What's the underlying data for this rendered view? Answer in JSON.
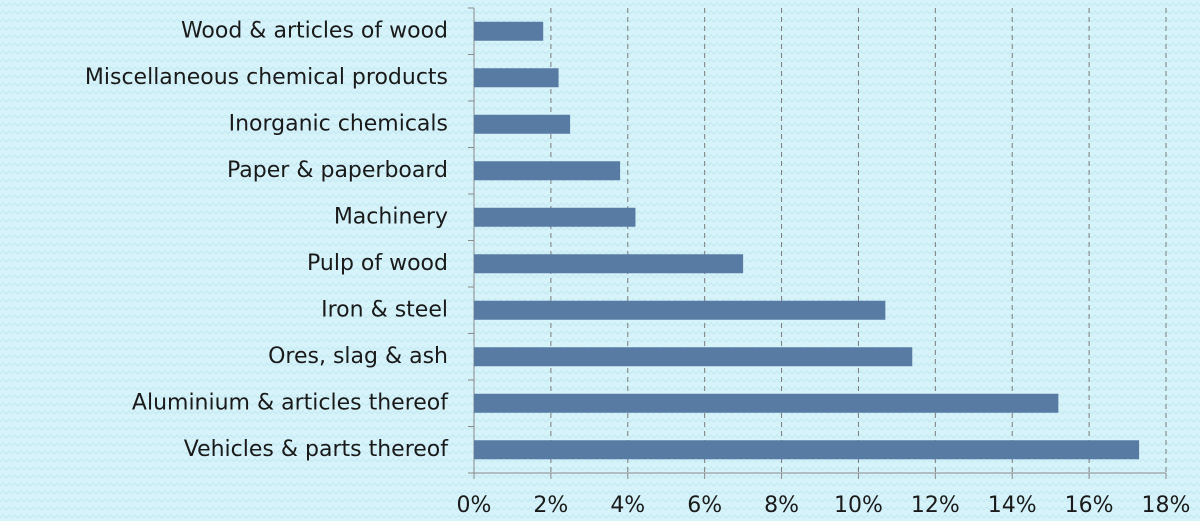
{
  "chart_data": {
    "type": "barh",
    "categories": [
      "Wood & articles of wood",
      "Miscellaneous chemical products",
      "Inorganic chemicals",
      "Paper & paperboard",
      "Machinery",
      "Pulp of wood",
      "Iron & steel",
      "Ores, slag & ash",
      "Aluminium & articles thereof",
      "Vehicles & parts thereof"
    ],
    "values": [
      1.8,
      2.2,
      2.5,
      3.8,
      4.2,
      7.0,
      10.7,
      11.4,
      15.2,
      17.3
    ],
    "color": "#587ba3",
    "xlim": [
      0,
      18
    ],
    "xticks": [
      {
        "value": 0,
        "label": "0%"
      },
      {
        "value": 2,
        "label": "2%"
      },
      {
        "value": 4,
        "label": "4%"
      },
      {
        "value": 6,
        "label": "6%"
      },
      {
        "value": 8,
        "label": "8%"
      },
      {
        "value": 10,
        "label": "10%"
      },
      {
        "value": 12,
        "label": "12%"
      },
      {
        "value": 14,
        "label": "14%"
      },
      {
        "value": 16,
        "label": "16%"
      },
      {
        "value": 18,
        "label": "18%"
      }
    ],
    "grid": true
  }
}
